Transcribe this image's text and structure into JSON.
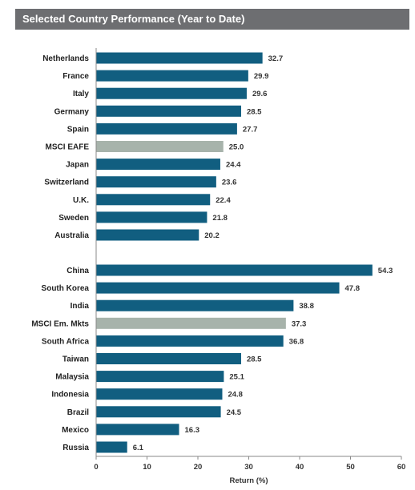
{
  "title": "Selected Country Performance (Year to Date)",
  "colors": {
    "bar": "#115e80",
    "index_bar": "#a7b3ab",
    "title_bg": "#6d6e71",
    "axis": "#888888"
  },
  "chart_data": {
    "type": "bar",
    "orientation": "horizontal",
    "title": "Selected Country Performance (Year to Date)",
    "xlabel": "Return (%)",
    "ylabel": "",
    "xlim": [
      0,
      60
    ],
    "xticks": [
      0,
      10,
      20,
      30,
      40,
      50,
      60
    ],
    "grid": false,
    "groups": [
      {
        "categories": [
          "Netherlands",
          "France",
          "Italy",
          "Germany",
          "Spain",
          "MSCI EAFE",
          "Japan",
          "Switzerland",
          "U.K.",
          "Sweden",
          "Australia"
        ],
        "values": [
          32.7,
          29.9,
          29.6,
          28.5,
          27.7,
          25.0,
          24.4,
          23.6,
          22.4,
          21.8,
          20.2
        ],
        "value_labels": [
          "32.7",
          "29.9",
          "29.6",
          "28.5",
          "27.7",
          "25.0",
          "24.4",
          "23.6",
          "22.4",
          "21.8",
          "20.2"
        ],
        "highlight": "MSCI EAFE"
      },
      {
        "categories": [
          "China",
          "South Korea",
          "India",
          "MSCI Em. Mkts",
          "South Africa",
          "Taiwan",
          "Malaysia",
          "Indonesia",
          "Brazil",
          "Mexico",
          "Russia"
        ],
        "values": [
          54.3,
          47.8,
          38.8,
          37.3,
          36.8,
          28.5,
          25.1,
          24.8,
          24.5,
          16.3,
          6.1
        ],
        "value_labels": [
          "54.3",
          "47.8",
          "38.8",
          "37.3",
          "36.8",
          "28.5",
          "25.1",
          "24.8",
          "24.5",
          "16.3",
          "6.1"
        ],
        "highlight": "MSCI Em. Mkts"
      }
    ]
  }
}
